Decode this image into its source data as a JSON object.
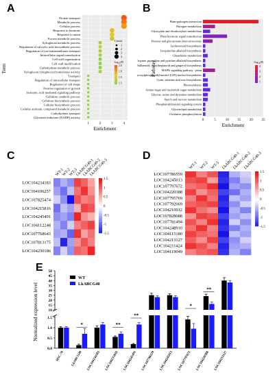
{
  "panels": {
    "A": {
      "letter": "A",
      "ylabel": "Term",
      "xlabel": "Enrichment",
      "xticks": [
        "1",
        "2",
        "3",
        "4"
      ],
      "legend_count_title": "Count",
      "legend_count_values": [
        "1",
        "2",
        "3",
        "4"
      ],
      "legend_p_title": "-log₁₀(P)",
      "legend_p_ticks": [
        "2.0",
        "1.8",
        "1.5",
        "1.3"
      ]
    },
    "B": {
      "letter": "B",
      "ylabel": "Pathway",
      "xlabel": "Enrichment",
      "xticks": [
        "0",
        "5",
        "10",
        "15",
        "20",
        "25"
      ],
      "legend_p_title": "-log₁₀(P)",
      "legend_p_ticks": [
        "4",
        "3",
        "2",
        "1"
      ]
    },
    "C": {
      "letter": "C",
      "samples": [
        "WT-1",
        "WT-2",
        "WT-3",
        "LkABCG40-1",
        "LkABCG40-2",
        "LkABCG40-3"
      ],
      "scale_ticks": [
        "1.5",
        "1",
        "0.5",
        "0",
        "-0.5",
        "-1",
        "-1.5"
      ]
    },
    "D": {
      "letter": "D",
      "samples": [
        "WT-1",
        "WT-2",
        "WT-3",
        "LkABCG40-1",
        "LkABCG40-2",
        "LkABCG40-3"
      ],
      "scale_ticks": [
        "1.5",
        "1",
        "0.5",
        "0",
        "-0.5",
        "-1",
        "-1.5"
      ]
    },
    "E": {
      "letter": "E",
      "ylabel": "Normalized expression level",
      "legend": [
        "WT",
        "LkABCG40"
      ],
      "yticks_upper": [
        "50",
        "45",
        "40",
        "35",
        "30",
        "25",
        "20",
        "15",
        "10"
      ],
      "yticks_lower": [
        "1.5",
        "1.0",
        "0.5",
        "0.0"
      ]
    }
  },
  "chart_data": [
    {
      "panel": "A",
      "type": "scatter",
      "xlabel": "Enrichment",
      "ylabel": "Term",
      "xlim": [
        0.5,
        4.3
      ],
      "categories": [
        "Protein transport",
        "Metabolic process",
        "Cellular process",
        "Response to hormone",
        "Response to auxin",
        "Fucose metabolic process",
        "Xyloglucan metabolic process",
        "Regulation of salicylic acid biosynthetic process",
        "Regulation of ion transmembrane transport",
        "Intracellular signal transduction",
        "Cell wall organization",
        "Cell wall modification",
        "Carbohydrate metabolic process",
        "Xyloglucan:xyloglucosyl transferase activity",
        "Transport",
        "Regulation of intracellular transport",
        "Regulation of cell shape",
        "Positive regulation of growth",
        "Jasmonic acid mediated signaling pathway",
        "Cellulose catabolic process",
        "Cellulose biosynthetic process",
        "Cellular biosynthetic process",
        "Cellular aromatic compound metabolic process",
        "Carbohydrate transport",
        "Glycerate reductase (NADP) activity"
      ],
      "x": [
        4,
        4,
        4,
        3,
        3,
        3,
        2,
        2,
        2,
        2,
        2,
        2,
        2,
        2,
        1,
        1,
        1,
        1,
        1,
        1,
        1,
        1,
        1,
        1,
        1
      ],
      "neglog10p": [
        2.0,
        1.9,
        1.8,
        1.7,
        1.6,
        1.5,
        1.4,
        1.5,
        1.4,
        1.4,
        1.3,
        1.3,
        1.3,
        1.4,
        1.3,
        1.3,
        1.3,
        1.3,
        1.3,
        1.3,
        1.3,
        1.3,
        1.3,
        1.3,
        1.3
      ],
      "counts": [
        4,
        4,
        4,
        3,
        3,
        3,
        2,
        2,
        2,
        2,
        2,
        2,
        2,
        2,
        1,
        1,
        1,
        1,
        1,
        1,
        1,
        1,
        1,
        1,
        1
      ]
    },
    {
      "panel": "B",
      "type": "bar",
      "xlabel": "Enrichment",
      "ylabel": "Pathway",
      "xlim": [
        0,
        25
      ],
      "categories": [
        "Plant-pathogen interaction",
        "Nitrogen metabolism",
        "Glyoxylate and dicarboxylate metabolism",
        "Plant hormone signal transduction",
        "Pentose and glucuronate interconversions",
        "Isoflavonoid biosynthesis",
        "Isoquinoline alkaloid biosynthesis",
        "Glutathione metabolism",
        "Tropane, piperidine and pyridine alkaloid biosynthesis",
        "Stilbenoid, diarylheptanoid and gingerol biosynthesis",
        "MAPK signaling pathway - plant",
        "Glycosylphosphatidylinositol (GPI)-anchor biosynthesis",
        "Cutin, suberine and wax biosynthesis",
        "Photosynthesis",
        "Amino sugar and nucleotide sugar metabolism",
        "Glycine, serine and threonine metabolism",
        "Starch and sucrose metabolism",
        "Phosphatidylinositol signaling system",
        "Glycerolipid metabolism",
        "Oxidative phosphorylation"
      ],
      "values": [
        23,
        5,
        3,
        10,
        4,
        1,
        1,
        2,
        1,
        1,
        5,
        1,
        2,
        2,
        3,
        2,
        2,
        1,
        1,
        1
      ],
      "neglog10p": [
        4.8,
        3.0,
        1.6,
        2.2,
        2.6,
        1.4,
        1.4,
        1.5,
        1.3,
        1.3,
        2.8,
        1.3,
        1.4,
        1.4,
        1.5,
        1.4,
        1.4,
        1.3,
        1.3,
        1.3
      ]
    },
    {
      "panel": "C",
      "type": "heatmap",
      "x": [
        "WT-1",
        "WT-2",
        "WT-3",
        "LkABCG40-1",
        "LkABCG40-2",
        "LkABCG40-3"
      ],
      "rows": [
        "LOC104234183",
        "LOC104106257",
        "LOC107825474",
        "LOC104215816",
        "LOC104245491",
        "LOC104112248",
        "LOC107768643",
        "LOC107813175",
        "LOC104230186"
      ],
      "values": [
        [
          -0.8,
          -0.5,
          -0.7,
          1.2,
          1.0,
          0.6
        ],
        [
          -0.6,
          -0.9,
          -0.4,
          0.9,
          1.3,
          0.7
        ],
        [
          -0.3,
          -0.7,
          -1.5,
          1.1,
          0.8,
          0.9
        ],
        [
          -0.9,
          -0.4,
          -0.6,
          0.5,
          1.2,
          1.1
        ],
        [
          -0.7,
          -0.6,
          -0.8,
          1.4,
          0.7,
          0.5
        ],
        [
          -0.5,
          -0.8,
          -0.3,
          0.8,
          1.0,
          1.2
        ],
        [
          -0.6,
          -0.5,
          -1.0,
          1.3,
          0.6,
          0.9
        ],
        [
          -0.4,
          -1.4,
          -0.6,
          0.7,
          1.1,
          0.8
        ],
        [
          -0.8,
          -0.3,
          -0.7,
          1.0,
          0.9,
          1.4
        ]
      ]
    },
    {
      "panel": "D",
      "type": "heatmap",
      "x": [
        "WT-1",
        "WT-2",
        "WT-3",
        "LkABCG40-1",
        "LkABCG40-2",
        "LkABCG40-3"
      ],
      "rows": [
        "LOC107786559",
        "LOC104245013",
        "LOC107797672",
        "LOC104220388",
        "LOC107795769",
        "LOC107792069",
        "LOC104210912",
        "LOC107828088",
        "LOC107781494",
        "LOC104248910",
        "LOC104115180",
        "LOC104213127",
        "LOC104211424",
        "LOC104119049"
      ],
      "values": [
        [
          1.3,
          0.8,
          1.1,
          -1.4,
          -0.5,
          -0.3
        ],
        [
          1.1,
          1.2,
          0.6,
          -1.3,
          -0.8,
          -0.4
        ],
        [
          0.9,
          1.0,
          1.3,
          -1.5,
          -0.6,
          -0.7
        ],
        [
          1.2,
          0.7,
          1.0,
          -1.2,
          -0.9,
          -0.5
        ],
        [
          0.8,
          1.3,
          0.9,
          -1.4,
          -0.4,
          -0.6
        ],
        [
          1.0,
          1.1,
          1.2,
          -1.3,
          -0.7,
          -0.3
        ],
        [
          1.3,
          0.9,
          0.7,
          -1.5,
          -0.5,
          -0.8
        ],
        [
          0.7,
          1.2,
          1.1,
          -1.2,
          -0.6,
          -0.4
        ],
        [
          1.1,
          0.8,
          1.3,
          -1.4,
          -0.3,
          -0.7
        ],
        [
          0.9,
          1.3,
          0.8,
          -1.3,
          -0.8,
          -0.5
        ],
        [
          1.2,
          1.0,
          0.9,
          -1.5,
          -0.4,
          -0.6
        ],
        [
          1.0,
          0.7,
          1.2,
          -1.2,
          -0.7,
          -0.3
        ],
        [
          1.3,
          1.1,
          0.8,
          -1.4,
          -0.6,
          -0.5
        ],
        [
          0.8,
          1.0,
          1.1,
          -1.3,
          -0.5,
          -0.8
        ]
      ]
    },
    {
      "panel": "E",
      "type": "bar",
      "ylabel": "Normalized expression level",
      "categories": [
        "HSC-70",
        "LkABCG40",
        "LOC104234183",
        "LOC104215816",
        "LOC104245491",
        "LOC107786559",
        "LOC104245013",
        "LOC107797672",
        "LOC104220388",
        "LOC104213127"
      ],
      "series": [
        {
          "name": "WT",
          "values": [
            1.0,
            0.15,
            1.0,
            0.55,
            0.2,
            25,
            25,
            1.4,
            24,
            40
          ]
        },
        {
          "name": "LkABCG40",
          "values": [
            1.0,
            0.7,
            1.15,
            0.7,
            1.15,
            23,
            23,
            0.95,
            16,
            38
          ]
        }
      ],
      "errors": [
        [
          0.05,
          0.05,
          0.08,
          0.05,
          0.03,
          2,
          1.5,
          0.15,
          2,
          3
        ],
        [
          0.05,
          0.25,
          0.1,
          0.1,
          0.1,
          1.5,
          1.5,
          0.25,
          2,
          2
        ]
      ],
      "significance": [
        "",
        "*",
        "",
        "**",
        "**",
        "",
        "",
        "*",
        "**",
        ""
      ],
      "ylim": [
        0,
        50
      ],
      "axis_break": [
        1.6,
        10
      ]
    }
  ]
}
